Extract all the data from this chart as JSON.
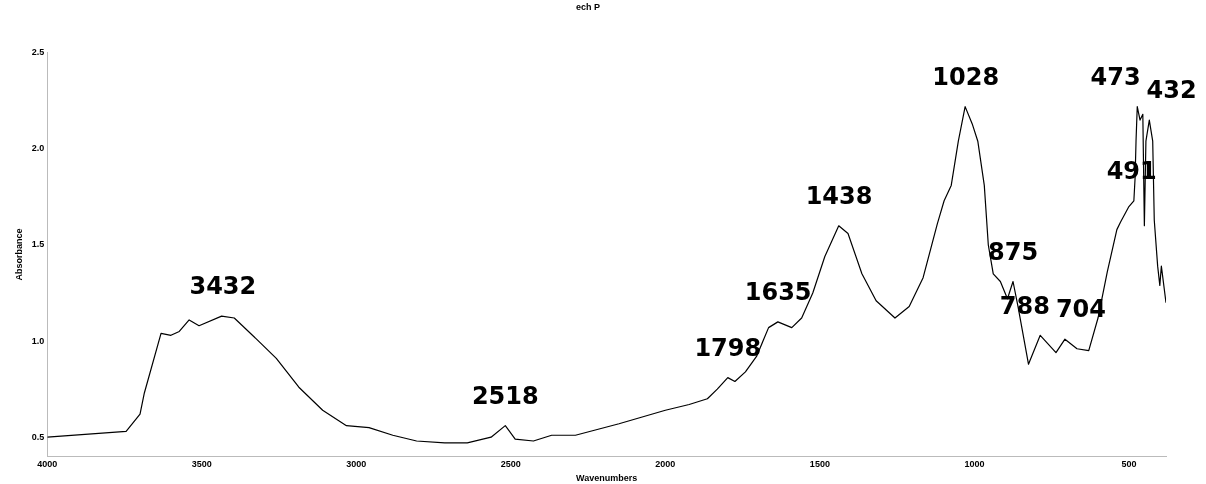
{
  "chart_data": {
    "type": "line",
    "title": "ech P",
    "xlabel": "Wavenumbers",
    "ylabel": "Absorbance",
    "xlim": [
      4000,
      380
    ],
    "xticks": [
      4000,
      3500,
      3000,
      2500,
      2000,
      1500,
      1000,
      500
    ],
    "ylim": [
      0.4,
      2.5
    ],
    "yticks": [
      {
        "value": 0.5,
        "label": "0.5"
      },
      {
        "value": 1.0,
        "label": "1.0"
      },
      {
        "value": 1.5,
        "label": "1.5"
      },
      {
        "value": 2.0,
        "label": "2.0"
      },
      {
        "value": 2.5,
        "label": "2.5"
      }
    ],
    "grid": false,
    "legend": false,
    "marker": "none",
    "line_style": "solid",
    "series": [
      {
        "color": "#000000",
        "x": [
          4000,
          3745,
          3700,
          3686,
          3632,
          3600,
          3573,
          3541,
          3509,
          3436,
          3395,
          3323,
          3259,
          3186,
          3109,
          3032,
          2959,
          2882,
          2805,
          2714,
          2641,
          2564,
          2518,
          2486,
          2427,
          2368,
          2291,
          2150,
          2000,
          1923,
          1864,
          1832,
          1798,
          1775,
          1741,
          1705,
          1666,
          1636,
          1591,
          1559,
          1523,
          1484,
          1439,
          1409,
          1364,
          1318,
          1257,
          1211,
          1166,
          1120,
          1098,
          1075,
          1052,
          1030,
          1007,
          989,
          968,
          955,
          939,
          916,
          893,
          875,
          859,
          825,
          787,
          736,
          707,
          668,
          630,
          600,
          570,
          539,
          527,
          500,
          484,
          480,
          477,
          473,
          464,
          455,
          450,
          445,
          434,
          423,
          418,
          407,
          400,
          395,
          380
        ],
        "values": [
          0.5,
          0.53,
          0.62,
          0.73,
          1.04,
          1.03,
          1.05,
          1.11,
          1.08,
          1.13,
          1.12,
          1.01,
          0.91,
          0.76,
          0.64,
          0.56,
          0.55,
          0.51,
          0.48,
          0.47,
          0.47,
          0.5,
          0.56,
          0.49,
          0.48,
          0.51,
          0.51,
          0.57,
          0.64,
          0.67,
          0.7,
          0.75,
          0.81,
          0.79,
          0.84,
          0.92,
          1.07,
          1.1,
          1.07,
          1.12,
          1.25,
          1.44,
          1.6,
          1.56,
          1.35,
          1.21,
          1.12,
          1.18,
          1.33,
          1.61,
          1.73,
          1.81,
          2.04,
          2.22,
          2.13,
          2.04,
          1.81,
          1.5,
          1.35,
          1.31,
          1.22,
          1.31,
          1.18,
          0.88,
          1.03,
          0.94,
          1.01,
          0.96,
          0.95,
          1.12,
          1.36,
          1.58,
          1.62,
          1.7,
          1.73,
          1.85,
          2.04,
          2.22,
          2.15,
          2.18,
          1.6,
          2.04,
          2.15,
          2.04,
          1.63,
          1.39,
          1.29,
          1.39,
          1.2
        ]
      }
    ],
    "annotations": [
      {
        "text": "3432",
        "x": 3432,
        "y": 1.13
      },
      {
        "text": "2518",
        "x": 2518,
        "y": 0.56
      },
      {
        "text": "1798",
        "x": 1798,
        "y": 0.81
      },
      {
        "text": "1635",
        "x": 1635,
        "y": 1.1
      },
      {
        "text": "1438",
        "x": 1438,
        "y": 1.6
      },
      {
        "text": "1028",
        "x": 1028,
        "y": 2.22
      },
      {
        "text": "875",
        "x": 875,
        "y": 1.31
      },
      {
        "text": "788",
        "x": 788,
        "y": 1.03
      },
      {
        "text": "704",
        "x": 704,
        "y": 1.01
      },
      {
        "text": "491",
        "x": 491,
        "y": 1.73
      },
      {
        "text": "473",
        "x": 473,
        "y": 2.22
      },
      {
        "text": "432",
        "x": 432,
        "y": 2.15
      }
    ]
  }
}
